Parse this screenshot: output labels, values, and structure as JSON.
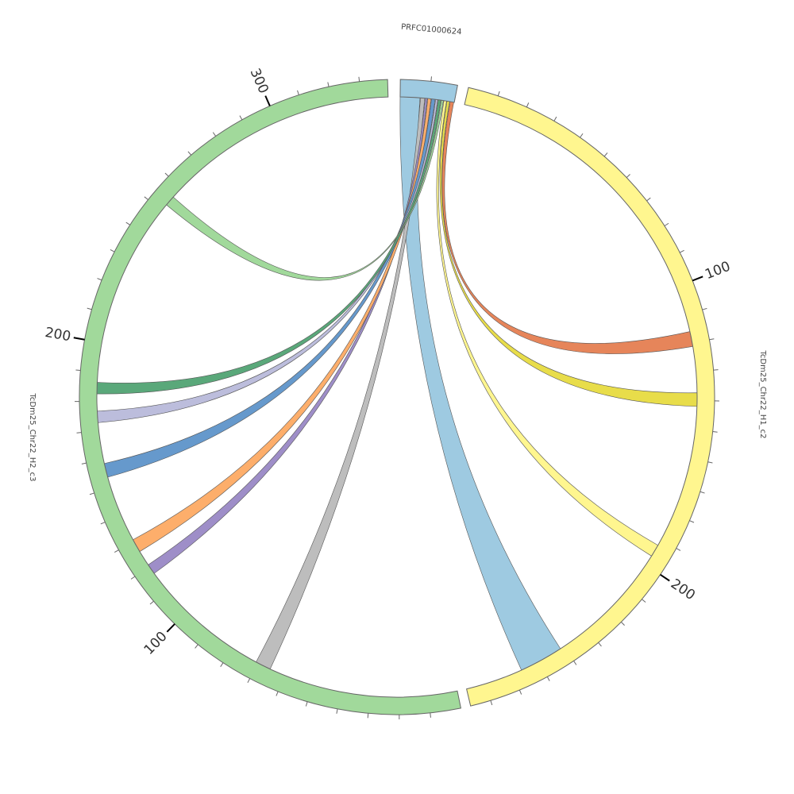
{
  "segments": [
    {
      "label": "PRFC01000624"
    },
    {
      "label": "TcDm25_Chr22_H1_c2",
      "ticks": [
        100,
        200
      ]
    },
    {
      "label": "TcDm25_Chr22_H2_c3",
      "ticks": [
        100,
        200,
        300
      ]
    }
  ]
}
